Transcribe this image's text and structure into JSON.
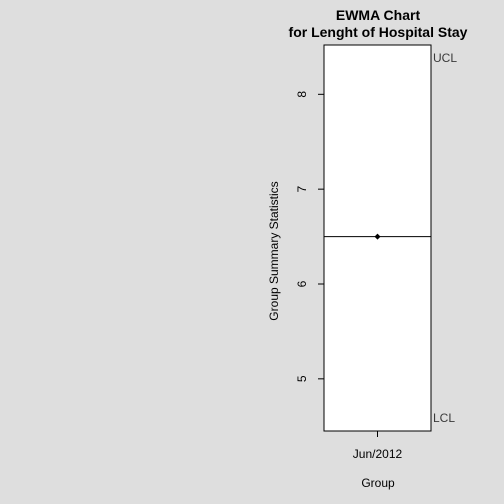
{
  "chart_data": {
    "type": "line",
    "title": [
      "EWMA Chart",
      "for Lenght of Hospital Stay"
    ],
    "xlabel": "Group",
    "ylabel": "Group Summary Statistics",
    "categories": [
      "Jun/2012"
    ],
    "series": [
      {
        "values": [
          6.5
        ]
      }
    ],
    "center_line": 6.5,
    "limits": {
      "ucl_label": "UCL",
      "lcl_label": "LCL"
    },
    "ylim": [
      4.45,
      8.52
    ],
    "yticks": [
      5,
      6,
      7,
      8
    ],
    "grid": false,
    "colors": {
      "background": "#dedede",
      "plot_bg": "#ffffff",
      "line": "#000000",
      "limit_text": "#3a3a3a"
    }
  }
}
